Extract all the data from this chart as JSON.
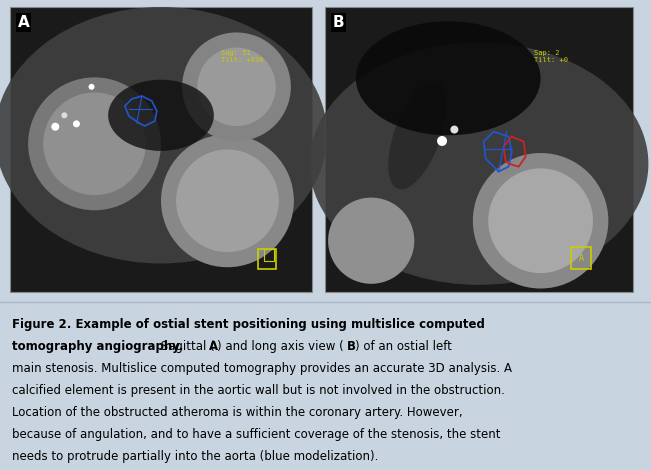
{
  "fig_width": 6.51,
  "fig_height": 4.7,
  "dpi": 100,
  "bg_color": "#c8d4e0",
  "image_panel_bg": "#000000",
  "panel_border_color": "#aaaaaa",
  "caption_bg": "#dde4ec",
  "caption_lines": [
    {
      "bold": "Figure 2. Example of ostial stent positioning using multislice computed",
      "normal": ""
    },
    {
      "bold": "tomography angiography.",
      "normal": " Sagittal (",
      "bold2": "A",
      "normal2": ") and long axis view (",
      "bold3": "B",
      "normal3": ") of an ostial left"
    },
    {
      "bold": "",
      "normal": "main stenosis. Multislice computed tomography provides an accurate 3D analysis. A"
    },
    {
      "bold": "",
      "normal": "calcified element is present in the aortic wall but is not involved in the obstruction."
    },
    {
      "bold": "",
      "normal": "Location of the obstructed atheroma is within the coronary artery. However,"
    },
    {
      "bold": "",
      "normal": "because of angulation, and to have a sufficient coverage of the stenosis, the stent"
    },
    {
      "bold": "",
      "normal": "needs to protrude partially into the aorta (blue modelization)."
    }
  ],
  "label_A": "A",
  "label_B": "B",
  "label_color": "white",
  "label_bg": "black",
  "yellow_text_color": "#cccc00",
  "blue_outline_color": "#2255cc",
  "red_outline_color": "#cc2222",
  "caption_fontsize": 8.5,
  "caption_font": "DejaVu Sans"
}
